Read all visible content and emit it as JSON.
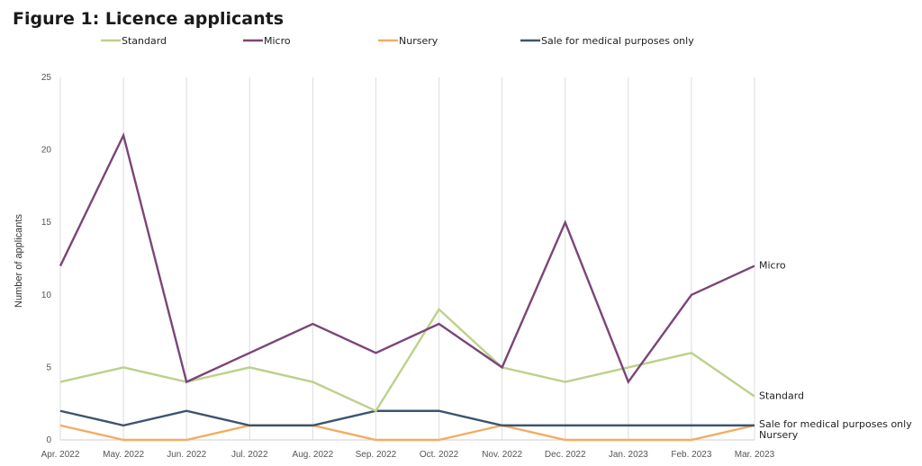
{
  "chart_data": {
    "type": "line",
    "title": "Figure 1: Licence applicants",
    "ylabel": "Number of applicants",
    "xlabel": "",
    "ylim": [
      0,
      25
    ],
    "yticks": [
      0,
      5,
      10,
      15,
      20,
      25
    ],
    "grid": "vertical",
    "legend": "top",
    "categories": [
      "Apr. 2022",
      "May. 2022",
      "Jun. 2022",
      "Jul. 2022",
      "Aug. 2022",
      "Sep. 2022",
      "Oct. 2022",
      "Nov. 2022",
      "Dec. 2022",
      "Jan. 2023",
      "Feb. 2023",
      "Mar. 2023"
    ],
    "series": [
      {
        "name": "Standard",
        "color": "#bcd18a",
        "values": [
          4,
          5,
          4,
          5,
          4,
          2,
          9,
          5,
          4,
          5,
          6,
          3
        ],
        "end_label": "Standard"
      },
      {
        "name": "Micro",
        "color": "#7b4577",
        "values": [
          12,
          21,
          4,
          6,
          8,
          6,
          8,
          5,
          15,
          4,
          10,
          12
        ],
        "end_label": "Micro"
      },
      {
        "name": "Nursery",
        "color": "#f2ad62",
        "values": [
          1,
          0,
          0,
          1,
          1,
          0,
          0,
          1,
          0,
          0,
          0,
          1
        ],
        "end_label": "Nursery"
      },
      {
        "name": "Sale for medical purposes only",
        "color": "#3c5470",
        "values": [
          2,
          1,
          2,
          1,
          1,
          2,
          2,
          1,
          1,
          1,
          1,
          1
        ],
        "end_label": "Sale for medical purposes only"
      }
    ]
  }
}
